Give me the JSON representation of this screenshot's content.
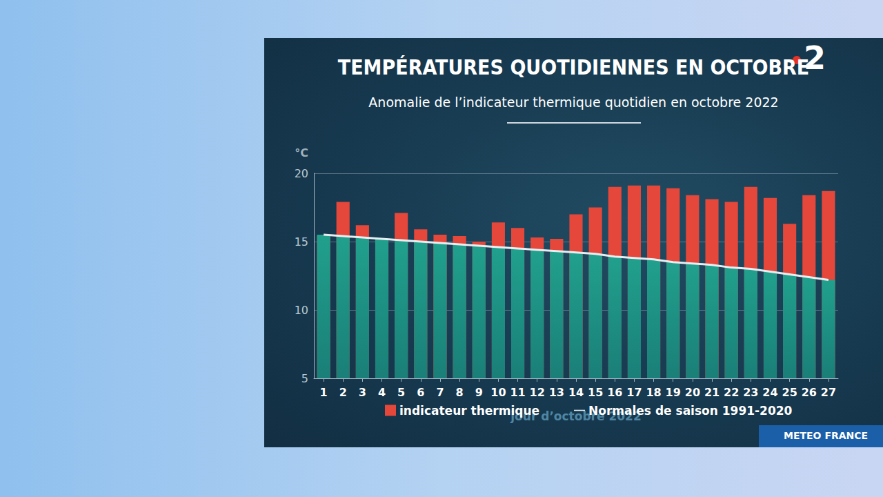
{
  "chart_data": {
    "type": "bar",
    "title": "TEMPÉRATURES QUOTIDIENNES EN OCTOBRE",
    "subtitle": "Anomalie de l’indicateur thermique quotidien en octobre 2022",
    "y_label": "°C",
    "x_label": "jour d’octobre 2022",
    "source": "METEO FRANCE",
    "logo": "2",
    "categories": [
      "1",
      "2",
      "3",
      "4",
      "5",
      "6",
      "7",
      "8",
      "9",
      "10",
      "11",
      "12",
      "13",
      "14",
      "15",
      "16",
      "17",
      "18",
      "19",
      "20",
      "21",
      "22",
      "23",
      "24",
      "25",
      "26",
      "27"
    ],
    "series": [
      {
        "name": "indicateur thermique",
        "type": "bar",
        "color": "#e5473b",
        "values": [
          15.4,
          17.9,
          16.2,
          15.2,
          17.1,
          15.9,
          15.5,
          15.4,
          15.0,
          16.4,
          16.0,
          15.3,
          15.2,
          17.0,
          17.5,
          19.0,
          19.1,
          19.1,
          18.9,
          18.4,
          18.1,
          17.9,
          19.0,
          18.2,
          16.3,
          18.4,
          18.7
        ]
      },
      {
        "name": "Normales de saison 1991-2020",
        "type": "line",
        "color": "#e6eef2",
        "values": [
          15.5,
          15.4,
          15.3,
          15.2,
          15.1,
          15.0,
          14.9,
          14.8,
          14.7,
          14.6,
          14.5,
          14.4,
          14.3,
          14.2,
          14.1,
          13.9,
          13.8,
          13.7,
          13.5,
          13.4,
          13.3,
          13.1,
          13.0,
          12.8,
          12.6,
          12.4,
          12.2
        ]
      }
    ],
    "ylim": [
      5,
      20
    ],
    "yticks": [
      5,
      10,
      15,
      20
    ],
    "grid": true,
    "legend": "bottom"
  }
}
